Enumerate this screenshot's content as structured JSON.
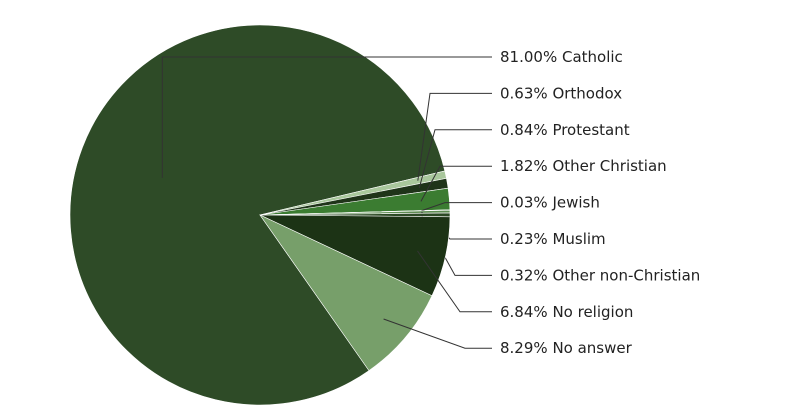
{
  "chart_data": {
    "type": "pie",
    "categories": [
      "Catholic",
      "Orthodox",
      "Protestant",
      "Other Christian",
      "Jewish",
      "Muslim",
      "Other non-Christian",
      "No religion",
      "No answer"
    ],
    "values": [
      81.0,
      0.63,
      0.84,
      1.82,
      0.03,
      0.23,
      0.32,
      6.84,
      8.29
    ],
    "value_labels": [
      "81.00%",
      "0.63%",
      "0.84%",
      "1.82%",
      "0.03%",
      "0.23%",
      "0.32%",
      "6.84%",
      "8.29%"
    ],
    "colors": [
      "#2e4b27",
      "#a9c79c",
      "#1f3419",
      "#3b7c31",
      "#cfe5c4",
      "#5e8c52",
      "#2b4923",
      "#1c3315",
      "#779f6a"
    ]
  }
}
